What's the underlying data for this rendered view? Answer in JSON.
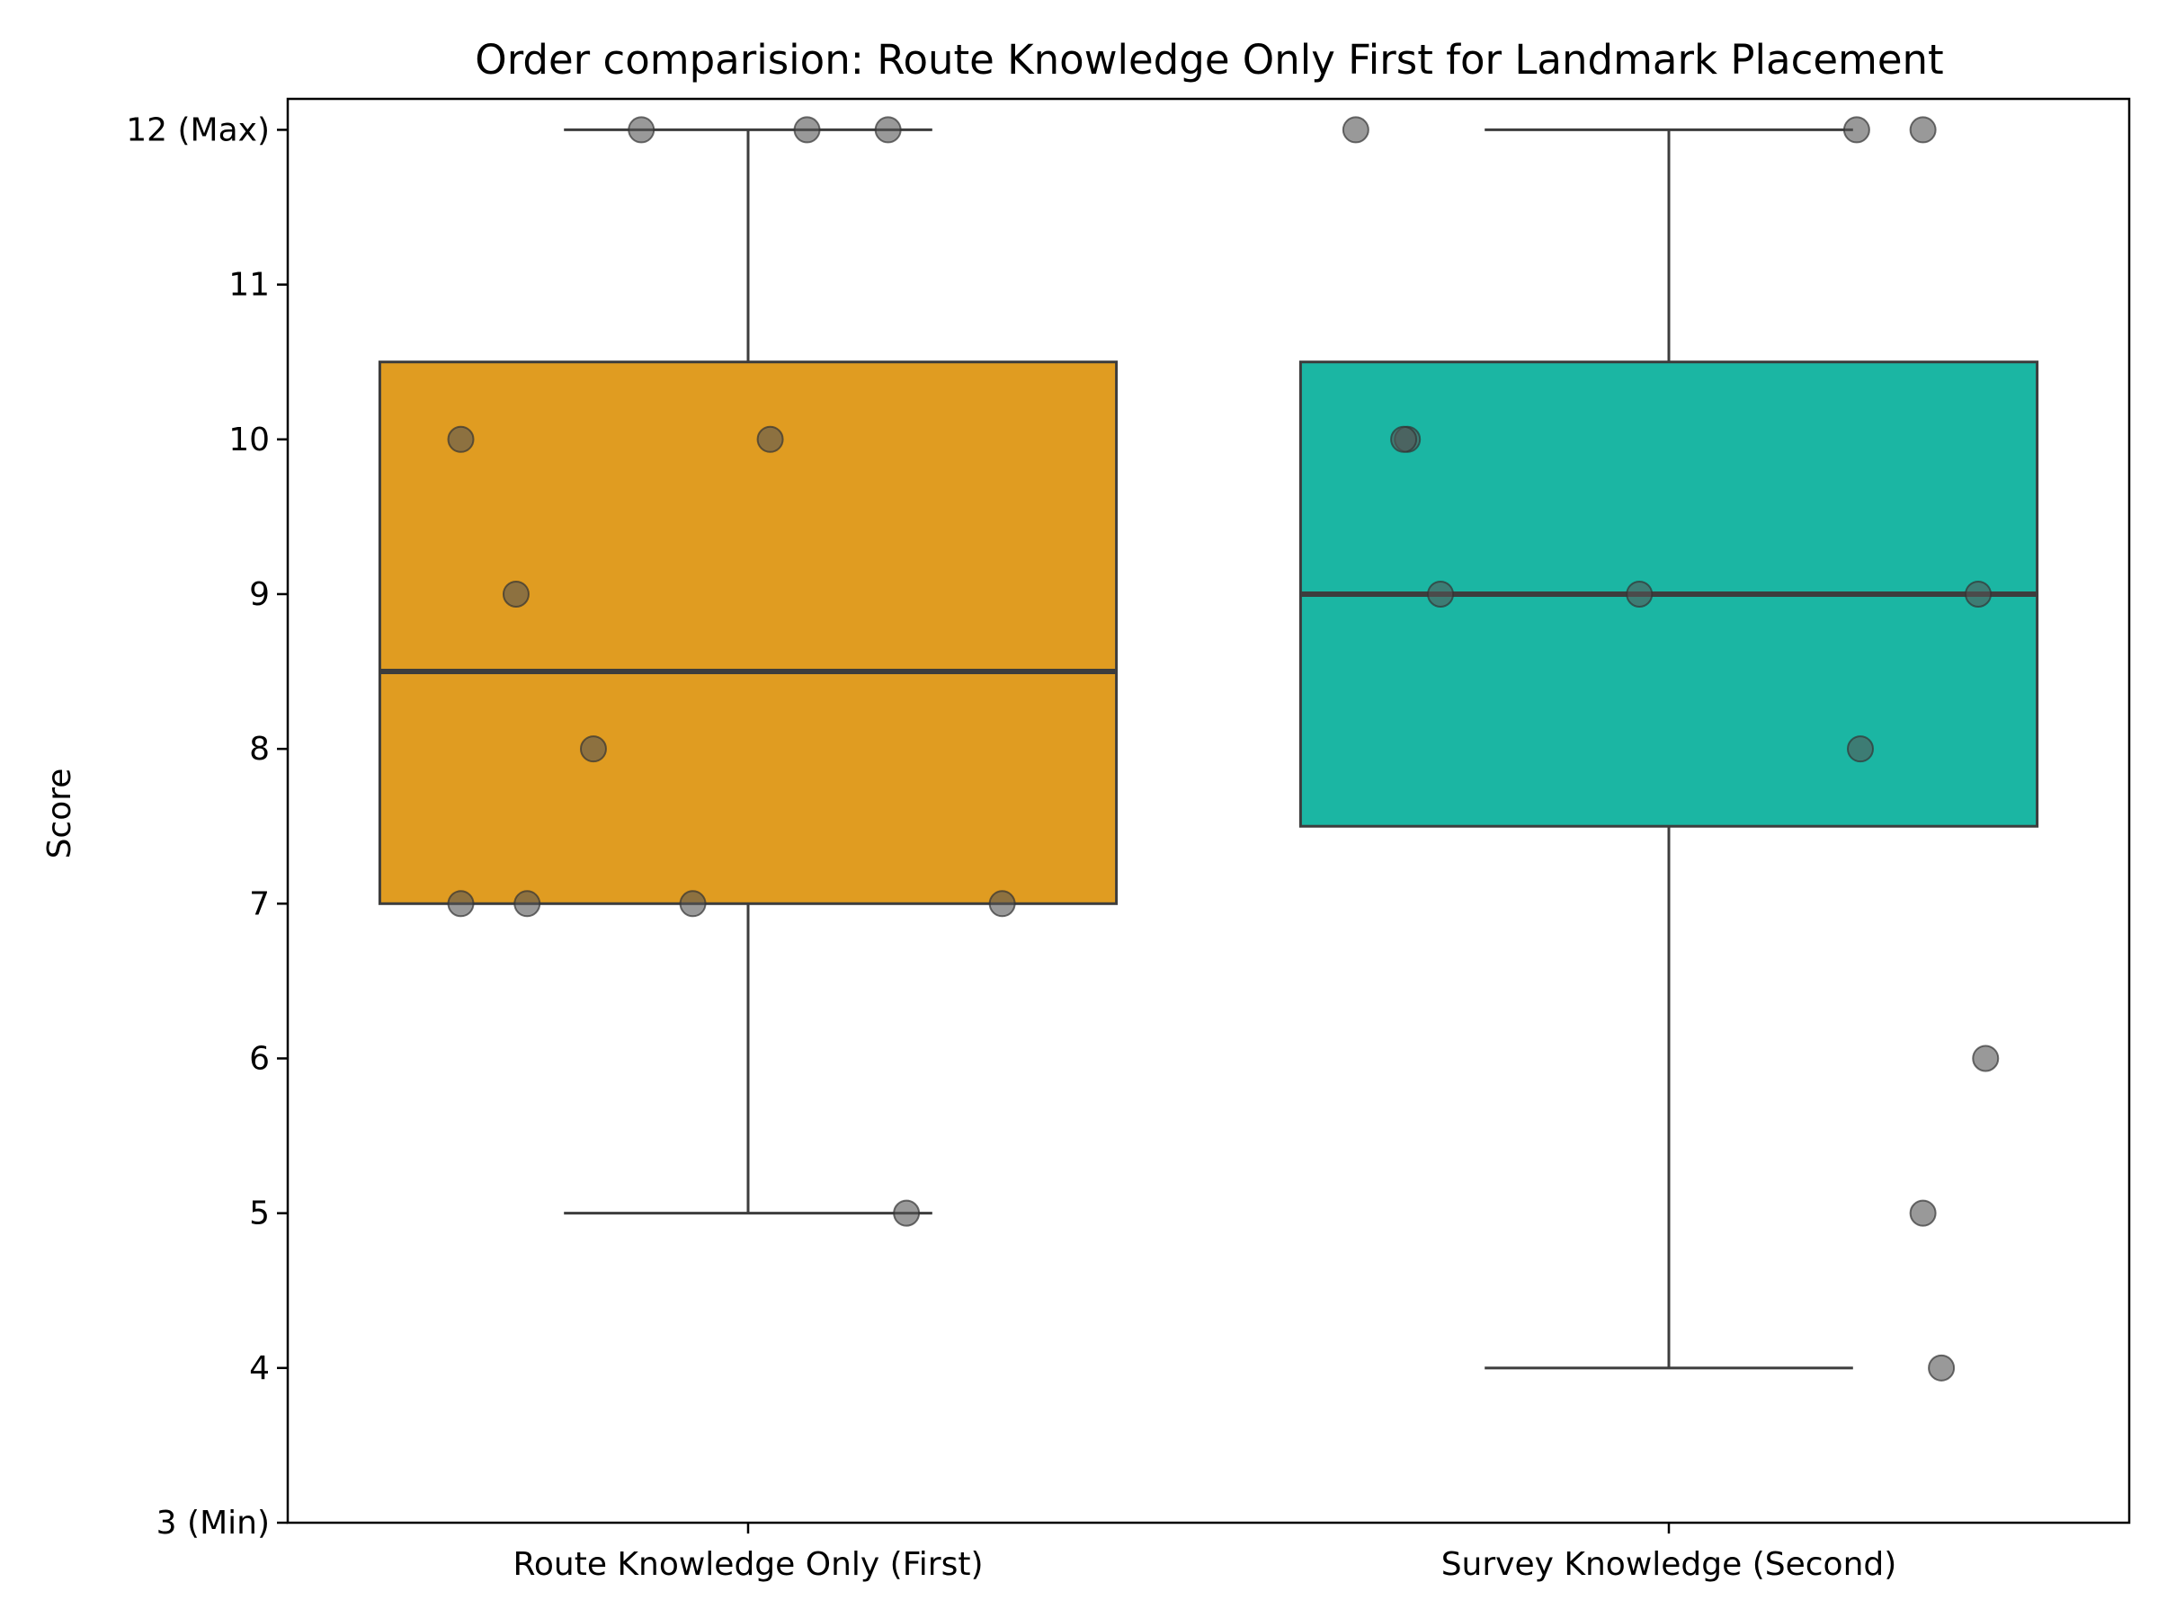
{
  "chart_data": {
    "type": "box",
    "title": "Order comparision: Route Knowledge Only First for Landmark Placement",
    "xlabel": "",
    "ylabel": "Score",
    "ylim": [
      3,
      12.2
    ],
    "yticks": [
      {
        "value": 12,
        "label": "12 (Max)"
      },
      {
        "value": 11,
        "label": "11"
      },
      {
        "value": 10,
        "label": "10"
      },
      {
        "value": 9,
        "label": "9"
      },
      {
        "value": 8,
        "label": "8"
      },
      {
        "value": 7,
        "label": "7"
      },
      {
        "value": 6,
        "label": "6"
      },
      {
        "value": 5,
        "label": "5"
      },
      {
        "value": 4,
        "label": "4"
      },
      {
        "value": 3,
        "label": "3 (Min)"
      }
    ],
    "grid": false,
    "categories": [
      "Route Knowledge Only (First)",
      "Survey Knowledge (Second)"
    ],
    "boxes": [
      {
        "category": "Route Knowledge Only (First)",
        "color": "#E09C21",
        "q1": 7,
        "median": 8.5,
        "q3": 10.5,
        "whisker_low": 5,
        "whisker_high": 12,
        "points": [
          {
            "y": 12,
            "jitter": -0.29
          },
          {
            "y": 12,
            "jitter": 0.16
          },
          {
            "y": 12,
            "jitter": 0.38
          },
          {
            "y": 10,
            "jitter": -0.78
          },
          {
            "y": 10,
            "jitter": 0.06
          },
          {
            "y": 9,
            "jitter": -0.63
          },
          {
            "y": 8,
            "jitter": -0.42
          },
          {
            "y": 7,
            "jitter": -0.78
          },
          {
            "y": 7,
            "jitter": -0.6
          },
          {
            "y": 7,
            "jitter": -0.15
          },
          {
            "y": 7,
            "jitter": 0.69
          },
          {
            "y": 5,
            "jitter": 0.43
          }
        ]
      },
      {
        "category": "Survey Knowledge (Second)",
        "color": "#1BB6A3",
        "q1": 7.5,
        "median": 9,
        "q3": 10.5,
        "whisker_low": 4,
        "whisker_high": 12,
        "points": [
          {
            "y": 12,
            "jitter": -0.85
          },
          {
            "y": 12,
            "jitter": 0.51
          },
          {
            "y": 12,
            "jitter": 0.69
          },
          {
            "y": 10,
            "jitter": -0.71
          },
          {
            "y": 10,
            "jitter": -0.72
          },
          {
            "y": 9,
            "jitter": -0.62
          },
          {
            "y": 9,
            "jitter": -0.08
          },
          {
            "y": 9,
            "jitter": 0.84
          },
          {
            "y": 8,
            "jitter": 0.52
          },
          {
            "y": 6,
            "jitter": 0.86
          },
          {
            "y": 5,
            "jitter": 0.69
          },
          {
            "y": 4,
            "jitter": 0.74
          }
        ]
      }
    ],
    "point_color": "#555555"
  }
}
